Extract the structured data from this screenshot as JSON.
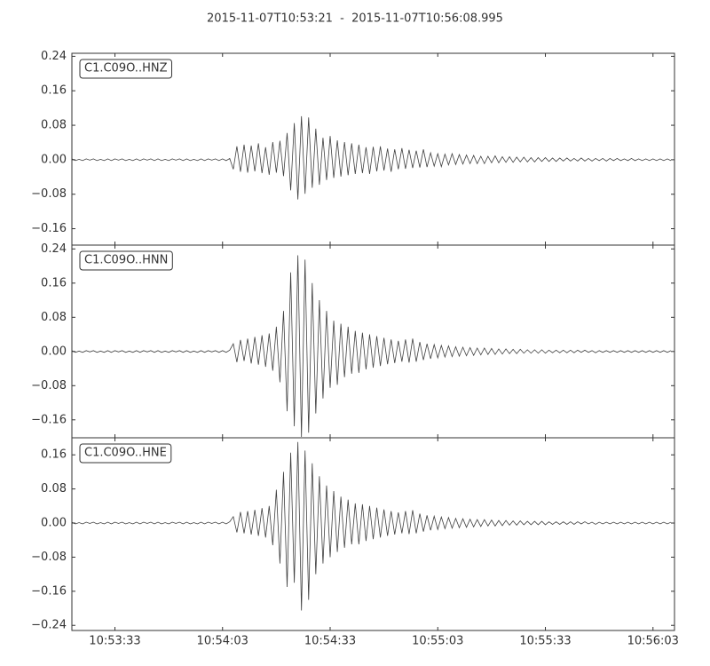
{
  "chart_data": [
    {
      "type": "line",
      "title": "2015-11-07T10:53:21  -  2015-11-07T10:56:08.995",
      "legend": "upper left",
      "xlim": [
        0,
        167.995
      ],
      "ylim": [
        -0.198,
        0.247
      ],
      "yticks": [
        0.24,
        0.16,
        0.08,
        {
          "value": 0,
          "label": "0.00"
        },
        {
          "value": -0.08,
          "label": "−0.08"
        },
        {
          "value": -0.16,
          "label": "−0.16"
        }
      ],
      "x": [
        0,
        1,
        2,
        3,
        4,
        5,
        6,
        7,
        8,
        9,
        10,
        11,
        12,
        13,
        14,
        15,
        16,
        17,
        18,
        19,
        20,
        21,
        22,
        23,
        24,
        25,
        26,
        27,
        28,
        29,
        30,
        31,
        32,
        33,
        34,
        35,
        36,
        37,
        38,
        39,
        40,
        41,
        42,
        43,
        44,
        45,
        46,
        47,
        48,
        49,
        50,
        51,
        52,
        53,
        54,
        55,
        56,
        57,
        58,
        59,
        60,
        61,
        62,
        63,
        64,
        65,
        66,
        67,
        68,
        69,
        70,
        71,
        72,
        73,
        74,
        75,
        76,
        77,
        78,
        79,
        80,
        81,
        82,
        83,
        84,
        85,
        86,
        87,
        88,
        89,
        90,
        91,
        92,
        93,
        94,
        95,
        96,
        97,
        98,
        99,
        100,
        101,
        102,
        103,
        104,
        105,
        106,
        107,
        108,
        109,
        110,
        111,
        112,
        113,
        114,
        115,
        116,
        117,
        118,
        119,
        120,
        121,
        122,
        123,
        124,
        125,
        126,
        127,
        128,
        129,
        130,
        131,
        132,
        133,
        134,
        135,
        136,
        137,
        138,
        139,
        140,
        141,
        142,
        143,
        144,
        145,
        146,
        147,
        148,
        149,
        150,
        151,
        152,
        153,
        154,
        155,
        156,
        157,
        158,
        159,
        160,
        161,
        162,
        163,
        164,
        165,
        166,
        167
      ],
      "series": [
        {
          "name": "C1.C09O..HNZ",
          "color": "#404040",
          "values": [
            0.002,
            -0.002,
            0.001,
            -0.002,
            0.002,
            -0.001,
            0.002,
            -0.002,
            0.001,
            -0.002,
            0.002,
            -0.002,
            0.002,
            -0.001,
            0.002,
            -0.002,
            0.001,
            -0.002,
            0.002,
            -0.002,
            0.002,
            -0.001,
            0.002,
            -0.002,
            0.002,
            -0.002,
            0.001,
            -0.002,
            0.002,
            -0.001,
            0.002,
            -0.002,
            0.002,
            -0.002,
            0.001,
            -0.002,
            0.002,
            -0.002,
            0.002,
            -0.001,
            0.002,
            -0.002,
            0.002,
            -0.002,
            0.003,
            -0.022,
            0.031,
            -0.028,
            0.035,
            -0.03,
            0.033,
            -0.027,
            0.038,
            -0.031,
            0.029,
            -0.035,
            0.041,
            -0.03,
            0.044,
            -0.038,
            0.062,
            -0.071,
            0.085,
            -0.092,
            0.101,
            -0.079,
            0.098,
            -0.065,
            0.072,
            -0.058,
            0.051,
            -0.047,
            0.055,
            -0.042,
            0.045,
            -0.039,
            0.041,
            -0.036,
            0.038,
            -0.033,
            0.035,
            -0.031,
            0.029,
            -0.033,
            0.03,
            -0.027,
            0.031,
            -0.025,
            0.026,
            -0.028,
            0.024,
            -0.022,
            0.027,
            -0.021,
            0.023,
            -0.019,
            0.021,
            -0.018,
            0.024,
            -0.017,
            0.016,
            -0.015,
            0.014,
            -0.016,
            0.013,
            -0.012,
            0.014,
            -0.011,
            0.012,
            -0.01,
            0.011,
            -0.009,
            0.01,
            -0.009,
            0.008,
            -0.009,
            0.008,
            -0.007,
            0.009,
            -0.007,
            0.007,
            -0.006,
            0.007,
            -0.006,
            0.006,
            -0.005,
            0.006,
            -0.005,
            0.005,
            -0.005,
            0.005,
            -0.004,
            0.005,
            -0.004,
            0.004,
            -0.004,
            0.004,
            -0.003,
            0.004,
            -0.003,
            0.003,
            -0.003,
            0.004,
            -0.003,
            0.003,
            -0.003,
            0.003,
            -0.002,
            0.003,
            -0.003,
            0.003,
            -0.002,
            0.003,
            -0.002,
            0.002,
            -0.002,
            0.003,
            -0.002,
            0.002,
            -0.002,
            0.002,
            -0.002,
            0.002,
            -0.002,
            0.002,
            -0.002,
            0.002,
            -0.002
          ]
        }
      ]
    },
    {
      "type": "line",
      "legend": "upper left",
      "xlim": [
        0,
        167.995
      ],
      "ylim": [
        -0.202,
        0.249
      ],
      "yticks": [
        0.24,
        0.16,
        0.08,
        {
          "value": 0,
          "label": "0.00"
        },
        {
          "value": -0.08,
          "label": "−0.08"
        },
        {
          "value": -0.16,
          "label": "−0.16"
        }
      ],
      "x": [
        0,
        1,
        2,
        3,
        4,
        5,
        6,
        7,
        8,
        9,
        10,
        11,
        12,
        13,
        14,
        15,
        16,
        17,
        18,
        19,
        20,
        21,
        22,
        23,
        24,
        25,
        26,
        27,
        28,
        29,
        30,
        31,
        32,
        33,
        34,
        35,
        36,
        37,
        38,
        39,
        40,
        41,
        42,
        43,
        44,
        45,
        46,
        47,
        48,
        49,
        50,
        51,
        52,
        53,
        54,
        55,
        56,
        57,
        58,
        59,
        60,
        61,
        62,
        63,
        64,
        65,
        66,
        67,
        68,
        69,
        70,
        71,
        72,
        73,
        74,
        75,
        76,
        77,
        78,
        79,
        80,
        81,
        82,
        83,
        84,
        85,
        86,
        87,
        88,
        89,
        90,
        91,
        92,
        93,
        94,
        95,
        96,
        97,
        98,
        99,
        100,
        101,
        102,
        103,
        104,
        105,
        106,
        107,
        108,
        109,
        110,
        111,
        112,
        113,
        114,
        115,
        116,
        117,
        118,
        119,
        120,
        121,
        122,
        123,
        124,
        125,
        126,
        127,
        128,
        129,
        130,
        131,
        132,
        133,
        134,
        135,
        136,
        137,
        138,
        139,
        140,
        141,
        142,
        143,
        144,
        145,
        146,
        147,
        148,
        149,
        150,
        151,
        152,
        153,
        154,
        155,
        156,
        157,
        158,
        159,
        160,
        161,
        162,
        163,
        164,
        165,
        166,
        167
      ],
      "series": [
        {
          "name": "C1.C09O..HNN",
          "color": "#404040",
          "values": [
            0.002,
            -0.002,
            0.001,
            -0.002,
            0.002,
            -0.001,
            0.002,
            -0.002,
            0.001,
            -0.002,
            0.002,
            -0.002,
            0.002,
            -0.001,
            0.002,
            -0.002,
            0.001,
            -0.002,
            0.002,
            -0.002,
            0.002,
            -0.001,
            0.002,
            -0.002,
            0.002,
            -0.002,
            0.001,
            -0.002,
            0.002,
            -0.001,
            0.002,
            -0.002,
            0.002,
            -0.002,
            0.001,
            -0.002,
            0.002,
            -0.002,
            0.002,
            -0.001,
            0.002,
            -0.002,
            0.002,
            -0.002,
            0.003,
            0.018,
            -0.025,
            0.027,
            -0.022,
            0.03,
            -0.028,
            0.034,
            -0.031,
            0.038,
            -0.036,
            0.042,
            -0.045,
            0.058,
            -0.072,
            0.095,
            -0.14,
            0.185,
            -0.175,
            0.225,
            -0.2,
            0.215,
            -0.19,
            0.16,
            -0.145,
            0.12,
            -0.11,
            0.095,
            -0.085,
            0.072,
            -0.078,
            0.065,
            -0.06,
            0.058,
            -0.052,
            0.048,
            -0.05,
            0.044,
            -0.042,
            0.04,
            -0.038,
            0.036,
            -0.034,
            0.032,
            -0.03,
            0.028,
            -0.027,
            0.025,
            -0.024,
            0.028,
            -0.026,
            0.03,
            -0.024,
            0.022,
            -0.02,
            0.018,
            -0.017,
            0.016,
            -0.015,
            0.014,
            -0.013,
            0.013,
            -0.012,
            0.011,
            -0.011,
            0.01,
            -0.01,
            0.009,
            -0.009,
            0.008,
            -0.008,
            0.008,
            -0.007,
            0.007,
            -0.007,
            0.006,
            -0.006,
            0.006,
            -0.005,
            0.005,
            -0.005,
            0.005,
            -0.004,
            0.004,
            -0.004,
            0.004,
            -0.004,
            0.004,
            -0.004,
            0.003,
            -0.003,
            0.003,
            -0.003,
            0.003,
            -0.003,
            0.003,
            -0.003,
            0.003,
            -0.002,
            0.003,
            -0.002,
            0.002,
            -0.003,
            0.002,
            -0.002,
            0.002,
            -0.002,
            0.002,
            -0.002,
            0.002,
            -0.002,
            0.002,
            -0.002,
            0.002,
            -0.002,
            0.002,
            -0.002,
            0.002,
            -0.002,
            0.002,
            -0.002,
            0.002,
            -0.002,
            0.002
          ]
        }
      ]
    },
    {
      "type": "line",
      "legend": "upper left",
      "xlim": [
        0,
        167.995
      ],
      "ylim": [
        -0.252,
        0.2
      ],
      "yticks": [
        0.16,
        0.08,
        {
          "value": 0,
          "label": "0.00"
        },
        {
          "value": -0.08,
          "label": "−0.08"
        },
        {
          "value": -0.16,
          "label": "−0.16"
        },
        {
          "value": -0.24,
          "label": "−0.24"
        }
      ],
      "xticks": [
        {
          "value": 12,
          "label": "10:53:33"
        },
        {
          "value": 42,
          "label": "10:54:03"
        },
        {
          "value": 72,
          "label": "10:54:33"
        },
        {
          "value": 102,
          "label": "10:55:03"
        },
        {
          "value": 132,
          "label": "10:55:33"
        },
        {
          "value": 162,
          "label": "10:56:03"
        }
      ],
      "x": [
        0,
        1,
        2,
        3,
        4,
        5,
        6,
        7,
        8,
        9,
        10,
        11,
        12,
        13,
        14,
        15,
        16,
        17,
        18,
        19,
        20,
        21,
        22,
        23,
        24,
        25,
        26,
        27,
        28,
        29,
        30,
        31,
        32,
        33,
        34,
        35,
        36,
        37,
        38,
        39,
        40,
        41,
        42,
        43,
        44,
        45,
        46,
        47,
        48,
        49,
        50,
        51,
        52,
        53,
        54,
        55,
        56,
        57,
        58,
        59,
        60,
        61,
        62,
        63,
        64,
        65,
        66,
        67,
        68,
        69,
        70,
        71,
        72,
        73,
        74,
        75,
        76,
        77,
        78,
        79,
        80,
        81,
        82,
        83,
        84,
        85,
        86,
        87,
        88,
        89,
        90,
        91,
        92,
        93,
        94,
        95,
        96,
        97,
        98,
        99,
        100,
        101,
        102,
        103,
        104,
        105,
        106,
        107,
        108,
        109,
        110,
        111,
        112,
        113,
        114,
        115,
        116,
        117,
        118,
        119,
        120,
        121,
        122,
        123,
        124,
        125,
        126,
        127,
        128,
        129,
        130,
        131,
        132,
        133,
        134,
        135,
        136,
        137,
        138,
        139,
        140,
        141,
        142,
        143,
        144,
        145,
        146,
        147,
        148,
        149,
        150,
        151,
        152,
        153,
        154,
        155,
        156,
        157,
        158,
        159,
        160,
        161,
        162,
        163,
        164,
        165,
        166,
        167
      ],
      "series": [
        {
          "name": "C1.C09O..HNE",
          "color": "#404040",
          "values": [
            0.002,
            -0.002,
            0.001,
            -0.002,
            0.002,
            -0.001,
            0.002,
            -0.002,
            0.001,
            -0.002,
            0.002,
            -0.002,
            0.002,
            -0.001,
            0.002,
            -0.002,
            0.001,
            -0.002,
            0.002,
            -0.002,
            0.002,
            -0.001,
            0.002,
            -0.002,
            0.002,
            -0.002,
            0.001,
            -0.002,
            0.002,
            -0.001,
            0.002,
            -0.002,
            0.002,
            -0.002,
            0.001,
            -0.002,
            0.002,
            -0.002,
            0.002,
            -0.001,
            0.002,
            -0.002,
            0.002,
            -0.002,
            0.003,
            0.015,
            -0.022,
            0.026,
            -0.024,
            0.028,
            -0.027,
            0.031,
            -0.03,
            0.035,
            -0.034,
            0.04,
            -0.052,
            0.078,
            -0.095,
            0.12,
            -0.15,
            0.165,
            -0.14,
            0.19,
            -0.205,
            0.17,
            -0.18,
            0.14,
            -0.12,
            0.11,
            -0.095,
            0.088,
            -0.08,
            0.075,
            -0.068,
            0.062,
            -0.058,
            0.055,
            -0.05,
            0.046,
            -0.05,
            0.044,
            -0.042,
            0.04,
            -0.038,
            0.036,
            -0.034,
            0.032,
            -0.03,
            0.028,
            -0.027,
            0.025,
            -0.024,
            0.028,
            -0.026,
            0.03,
            -0.024,
            0.022,
            -0.02,
            0.018,
            -0.017,
            0.016,
            -0.015,
            0.014,
            -0.013,
            0.013,
            -0.012,
            0.011,
            -0.011,
            0.01,
            -0.01,
            0.009,
            -0.009,
            0.008,
            -0.008,
            0.008,
            -0.007,
            0.007,
            -0.007,
            0.006,
            -0.006,
            0.006,
            -0.005,
            0.005,
            -0.005,
            0.005,
            -0.004,
            0.004,
            -0.004,
            0.004,
            -0.004,
            0.004,
            -0.004,
            0.003,
            -0.003,
            0.003,
            -0.003,
            0.003,
            -0.003,
            0.003,
            -0.003,
            0.003,
            -0.002,
            0.003,
            -0.002,
            0.002,
            -0.003,
            0.002,
            -0.002,
            0.002,
            -0.002,
            0.002,
            -0.002,
            0.002,
            -0.002,
            0.002,
            -0.002,
            0.002,
            -0.002,
            0.002,
            -0.002,
            0.002,
            -0.002,
            0.002,
            -0.002,
            0.002,
            -0.002,
            0.002
          ]
        }
      ]
    }
  ]
}
